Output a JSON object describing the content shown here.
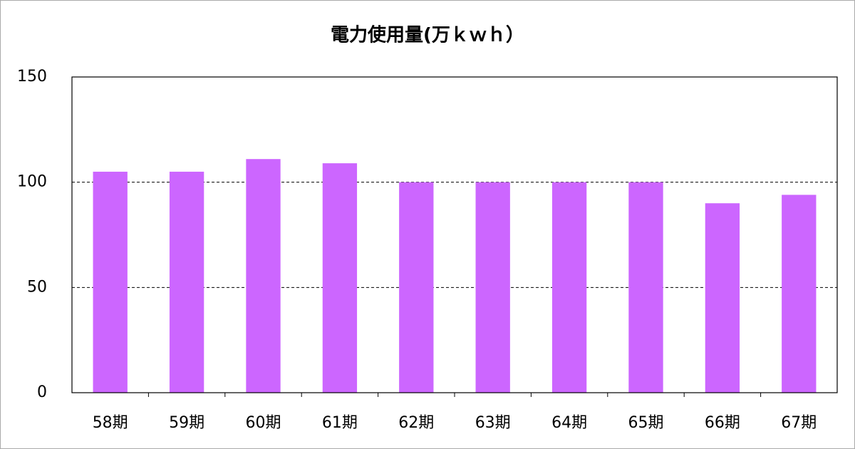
{
  "chart_data": {
    "type": "bar",
    "title": "電力使用量(万ｋｗｈ）",
    "categories": [
      "58期",
      "59期",
      "60期",
      "61期",
      "62期",
      "63期",
      "64期",
      "65期",
      "66期",
      "67期"
    ],
    "values": [
      105,
      105,
      111,
      109,
      100,
      100,
      100,
      100,
      90,
      94
    ],
    "color": "#cc66ff",
    "ylim": [
      0,
      150
    ],
    "yticks": [
      0,
      50,
      100,
      150
    ],
    "grid": true
  }
}
